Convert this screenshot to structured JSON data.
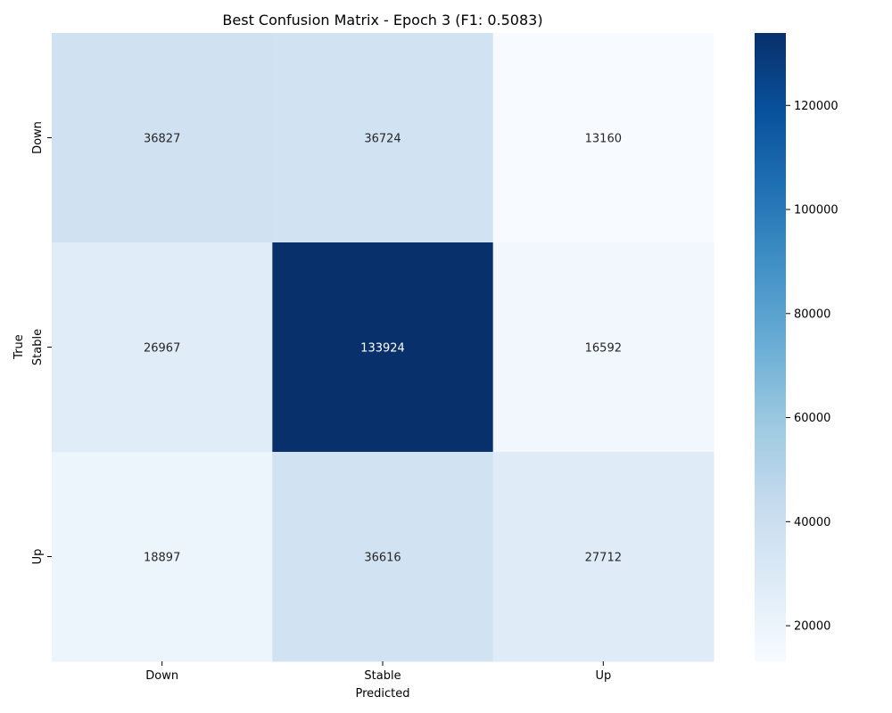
{
  "chart_data": {
    "type": "heatmap",
    "title": "Best Confusion Matrix - Epoch 3 (F1: 0.5083)",
    "xlabel": "Predicted",
    "ylabel": "True",
    "x_categories": [
      "Down",
      "Stable",
      "Up"
    ],
    "y_categories": [
      "Down",
      "Stable",
      "Up"
    ],
    "values": [
      [
        36827,
        36724,
        13160
      ],
      [
        26967,
        133924,
        16592
      ],
      [
        18897,
        36616,
        27712
      ]
    ],
    "colormap": "Blues",
    "color_range": [
      13160,
      133924
    ],
    "colorbar_ticks": [
      "20000",
      "40000",
      "60000",
      "80000",
      "100000",
      "120000"
    ],
    "grid": false
  }
}
